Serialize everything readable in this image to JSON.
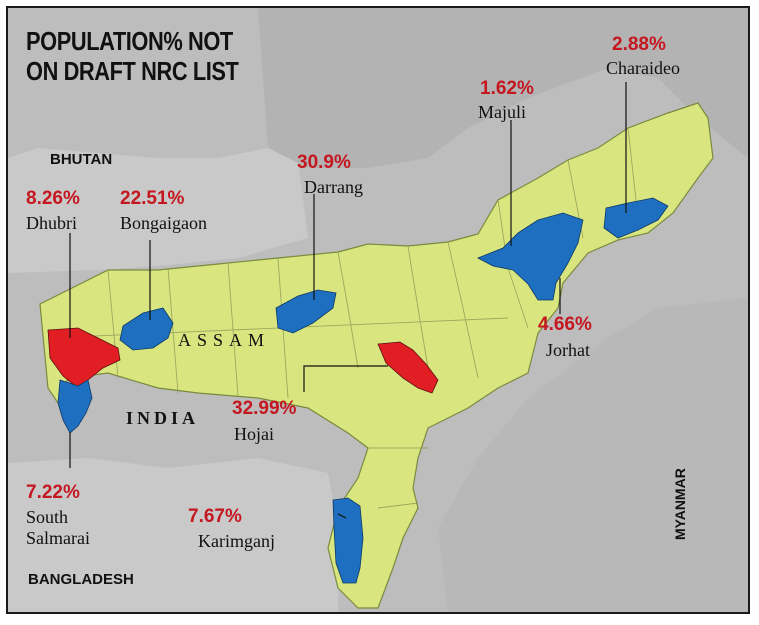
{
  "title": {
    "line1": "POPULATION% NOT",
    "line2": "ON DRAFT NRC LIST"
  },
  "state_label": "ASSAM",
  "countries": {
    "bhutan": "BHUTAN",
    "india": "INDIA",
    "bangladesh": "BANGLADESH",
    "myanmar": "MYANMAR"
  },
  "colors": {
    "assam": "#d9e680",
    "neighbors": "#bdbdbd",
    "red_district": "#e01e24",
    "blue_district": "#1f6fc0",
    "percent_text": "#c41720"
  },
  "districts": {
    "dhubri": {
      "name": "Dhubri",
      "percent": "8.26%",
      "color": "red"
    },
    "bongaigaon": {
      "name": "Bongaigaon",
      "percent": "22.51%",
      "color": "blue"
    },
    "darrang": {
      "name": "Darrang",
      "percent": "30.9%",
      "color": "blue"
    },
    "majuli": {
      "name": "Majuli",
      "percent": "1.62%",
      "color": "blue"
    },
    "charaideo": {
      "name": "Charaideo",
      "percent": "2.88%",
      "color": "blue"
    },
    "jorhat": {
      "name": "Jorhat",
      "percent": "4.66%",
      "color": "blue"
    },
    "hojai": {
      "name": "Hojai",
      "percent": "32.99%",
      "color": "red"
    },
    "south_salmarai": {
      "name_line1": "South",
      "name_line2": "Salmarai",
      "percent": "7.22%",
      "color": "blue"
    },
    "karimganj": {
      "name": "Karimganj",
      "percent": "7.67%",
      "color": "blue"
    }
  }
}
